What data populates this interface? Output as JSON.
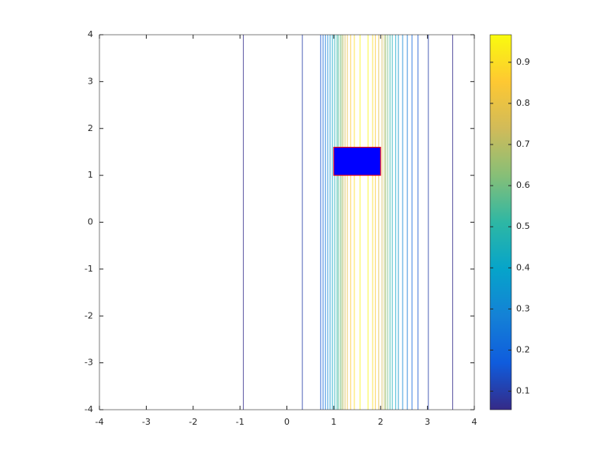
{
  "chart_data": {
    "type": "contour",
    "xlim": [
      -4,
      4
    ],
    "ylim": [
      -4,
      4
    ],
    "xticks": [
      -4,
      -3,
      -2,
      -1,
      0,
      1,
      2,
      3,
      4
    ],
    "yticks": [
      -4,
      -3,
      -2,
      -1,
      0,
      1,
      2,
      3,
      4
    ],
    "contours": {
      "x": [
        -0.93,
        0.33,
        0.72,
        0.77,
        0.82,
        0.87,
        0.92,
        0.97,
        1.02,
        1.07,
        1.1,
        1.14,
        1.17,
        1.2,
        1.24,
        1.29,
        1.36,
        1.44,
        1.56,
        1.73,
        1.83,
        1.89,
        1.96,
        2.03,
        2.08,
        2.11,
        2.15,
        2.2,
        2.25,
        2.32,
        2.38,
        2.47,
        2.57,
        2.67,
        2.8,
        3.02,
        3.54
      ],
      "levels": [
        0.06,
        0.1,
        0.15,
        0.2,
        0.25,
        0.3,
        0.35,
        0.4,
        0.45,
        0.5,
        0.55,
        0.6,
        0.65,
        0.7,
        0.75,
        0.8,
        0.85,
        0.9,
        0.95,
        0.95,
        0.9,
        0.85,
        0.8,
        0.75,
        0.7,
        0.65,
        0.6,
        0.5,
        0.45,
        0.4,
        0.35,
        0.3,
        0.25,
        0.2,
        0.15,
        0.1,
        0.06
      ]
    },
    "rectangle": {
      "x": [
        1,
        2
      ],
      "y": [
        1,
        1.6
      ],
      "color": "#0000ff",
      "edgecolor": "#ff0000"
    },
    "colormap": [
      "#352a87",
      "#0f5cdd",
      "#1481d6",
      "#06a4ca",
      "#2eb7a4",
      "#87bf77",
      "#d1bb59",
      "#fec832",
      "#f9fb0e"
    ],
    "clim": [
      0.055,
      0.967
    ],
    "cticks": [
      0.1,
      0.2,
      0.3,
      0.4,
      0.5,
      0.6,
      0.7,
      0.8,
      0.9
    ]
  }
}
